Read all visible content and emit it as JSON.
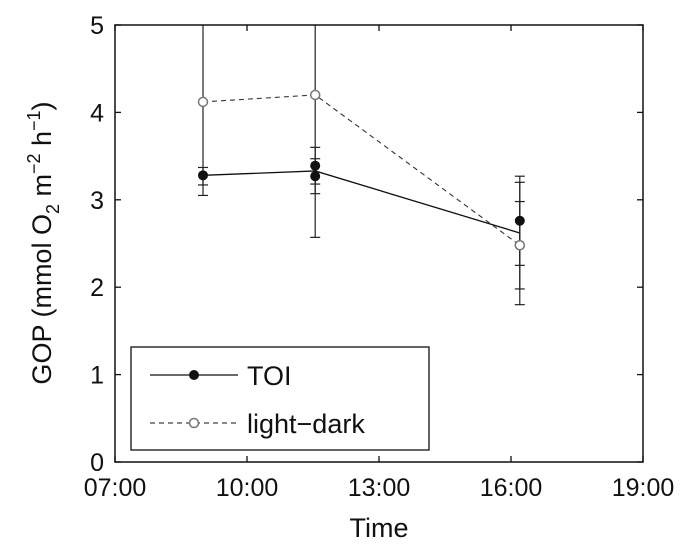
{
  "chart_data": {
    "type": "line",
    "xlabel": "Time",
    "ylabel": {
      "prefix": "GOP (mmol O",
      "o2_sub": "2",
      "mid": " m",
      "m_sup": "−2",
      "h": " h",
      "h_sup": "−1",
      "suffix": ")"
    },
    "x_ticks": [
      "07:00",
      "10:00",
      "13:00",
      "16:00",
      "19:00"
    ],
    "x_tick_hours": [
      7,
      10,
      13,
      16,
      19
    ],
    "xlim": [
      7,
      19
    ],
    "ylim": [
      0,
      5
    ],
    "y_ticks": [
      "0",
      "1",
      "2",
      "3",
      "4",
      "5"
    ],
    "grid": false,
    "legend_position": "bottom-left",
    "series": [
      {
        "name": "TOI",
        "marker": "filled-circle",
        "line_style": "solid",
        "line_x": [
          9.0,
          11.55,
          16.2
        ],
        "line_y": [
          3.28,
          3.33,
          2.62
        ],
        "points": [
          {
            "x": 9.0,
            "y": 3.28,
            "err_low": 3.05,
            "err_high": 3.37
          },
          {
            "x": 11.55,
            "y": 3.39,
            "err_low": 3.18,
            "err_high": 3.6
          },
          {
            "x": 11.55,
            "y": 3.27,
            "err_low": 3.07,
            "err_high": 3.47
          },
          {
            "x": 16.2,
            "y": 2.76,
            "err_low": 2.25,
            "err_high": 3.27
          },
          {
            "x": 16.2,
            "y": 2.48,
            "err_low": 1.98,
            "err_high": 2.98
          }
        ]
      },
      {
        "name": "light−dark",
        "marker": "open-circle",
        "line_style": "dashed",
        "line_x": [
          9.0,
          11.55,
          16.2
        ],
        "line_y": [
          4.12,
          4.2,
          2.48
        ],
        "points": [
          {
            "x": 9.0,
            "y": 4.12,
            "err_low": 3.17,
            "err_high": 5.0
          },
          {
            "x": 11.55,
            "y": 4.2,
            "err_low": 2.57,
            "err_high": 5.0
          },
          {
            "x": 16.2,
            "y": 2.48,
            "err_low": 1.8,
            "err_high": 3.2
          }
        ]
      }
    ]
  }
}
